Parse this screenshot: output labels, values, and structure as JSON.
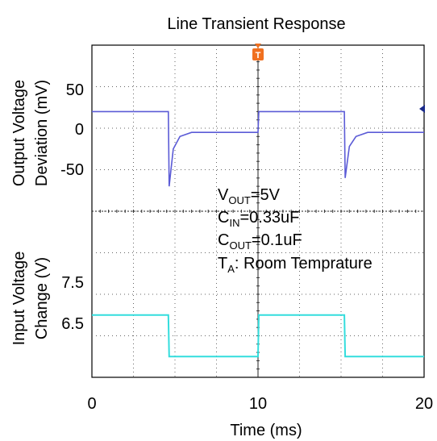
{
  "chart_data": {
    "type": "line",
    "title": "Line Transient Response",
    "xlabel": "Time (ms)",
    "x_ticks": [
      "0",
      "10",
      "20"
    ],
    "xlim": [
      0,
      20
    ],
    "top_panel": {
      "ylabel_line1": "Output Voltage",
      "ylabel_line2": "Deviation (mV)",
      "y_ticks": [
        "50",
        "0",
        "-50"
      ],
      "ylim": [
        -100,
        100
      ],
      "color": "#5b5bd6",
      "series": [
        {
          "x": 0,
          "y": 20
        },
        {
          "x": 4.6,
          "y": 20
        },
        {
          "x": 4.65,
          "y": -70
        },
        {
          "x": 4.9,
          "y": -25
        },
        {
          "x": 5.3,
          "y": -10
        },
        {
          "x": 6.0,
          "y": -5
        },
        {
          "x": 10,
          "y": -5
        },
        {
          "x": 10.05,
          "y": 20
        },
        {
          "x": 15.2,
          "y": 20
        },
        {
          "x": 15.25,
          "y": -60
        },
        {
          "x": 15.5,
          "y": -22
        },
        {
          "x": 15.9,
          "y": -10
        },
        {
          "x": 16.6,
          "y": -5
        },
        {
          "x": 20,
          "y": -5
        }
      ]
    },
    "bottom_panel": {
      "ylabel_line1": "Input Voltage",
      "ylabel_line2": "Change (V)",
      "y_ticks": [
        "7.5",
        "6.5"
      ],
      "ylim": [
        5.5,
        9.5
      ],
      "color": "#33dddd",
      "series": [
        {
          "x": 0,
          "y": 7.0
        },
        {
          "x": 4.6,
          "y": 7.0
        },
        {
          "x": 4.65,
          "y": 6.0
        },
        {
          "x": 10,
          "y": 6.0
        },
        {
          "x": 10.05,
          "y": 7.0
        },
        {
          "x": 15.2,
          "y": 7.0
        },
        {
          "x": 15.25,
          "y": 6.0
        },
        {
          "x": 20,
          "y": 6.0
        }
      ]
    },
    "annotations": [
      {
        "main": "V",
        "sub": "OUT",
        "rest": "=5V"
      },
      {
        "main": "C",
        "sub": "IN",
        "rest": "=0.33uF"
      },
      {
        "main": "C",
        "sub": "OUT",
        "rest": "=0.1uF"
      },
      {
        "main": "T",
        "sub": "A",
        "rest": ": Room Temprature"
      }
    ],
    "trigger_marker": {
      "label": "T",
      "color": "#f07020"
    },
    "level_marker_color": "#1a2a8a"
  }
}
